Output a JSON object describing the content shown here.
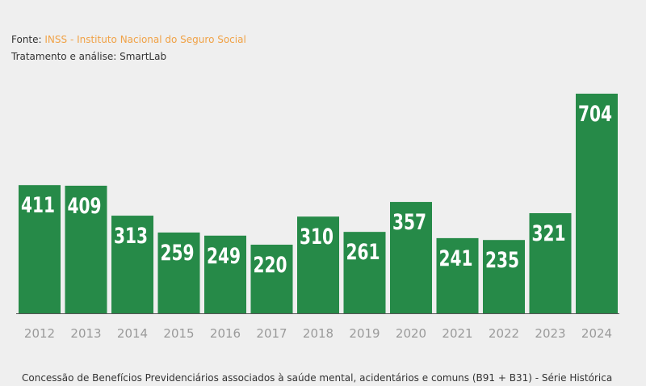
{
  "source": {
    "prefix": "Fonte: ",
    "link": "INSS - Instituto Nacional do Seguro Social"
  },
  "treatment": "Tratamento e análise: SmartLab",
  "caption": "Concessão de Benefícios Previdenciários associados à saúde mental, acidentários e comuns (B91 + B31) - Série Histórica",
  "colors": {
    "bar": "#268a48",
    "source_link": "#f0a246",
    "axis": "#555555"
  },
  "chart_data": {
    "type": "bar",
    "categories": [
      "2012",
      "2013",
      "2014",
      "2015",
      "2016",
      "2017",
      "2018",
      "2019",
      "2020",
      "2021",
      "2022",
      "2023",
      "2024"
    ],
    "values": [
      411,
      409,
      313,
      259,
      249,
      220,
      310,
      261,
      357,
      241,
      235,
      321,
      704
    ],
    "data_labels": [
      "411",
      "409",
      "313",
      "259",
      "249",
      "220",
      "310",
      "261",
      "357",
      "241",
      "235",
      "321",
      "704"
    ],
    "title": "",
    "xlabel": "",
    "ylabel": "",
    "ylim": [
      0,
      704
    ],
    "grid": false,
    "legend": "none"
  }
}
